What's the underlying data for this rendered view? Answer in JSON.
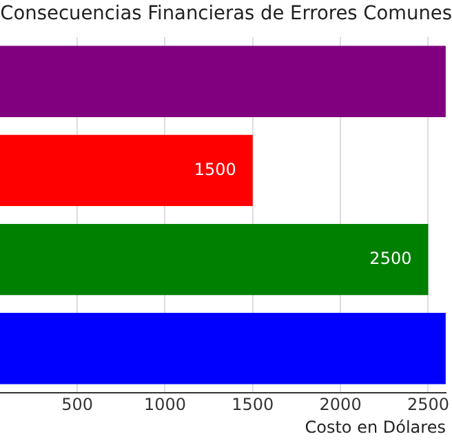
{
  "chart_data": {
    "type": "bar",
    "orientation": "horizontal",
    "title": "Consecuencias Financieras de Errores Comunes",
    "xlabel": "Costo en Dólares",
    "categories": [
      null,
      null,
      null,
      null
    ],
    "values": [
      2600,
      1500,
      2500,
      2600
    ],
    "colors": [
      "#800080",
      "#ff0000",
      "#008000",
      "#0000ff"
    ],
    "value_labels": [
      null,
      "1500",
      "2500",
      null
    ],
    "xlim": [
      60,
      2600
    ],
    "xticks": [
      500,
      1000,
      1500,
      2000,
      2500
    ],
    "grid": "x",
    "legend": false,
    "tick_labels": "x"
  }
}
